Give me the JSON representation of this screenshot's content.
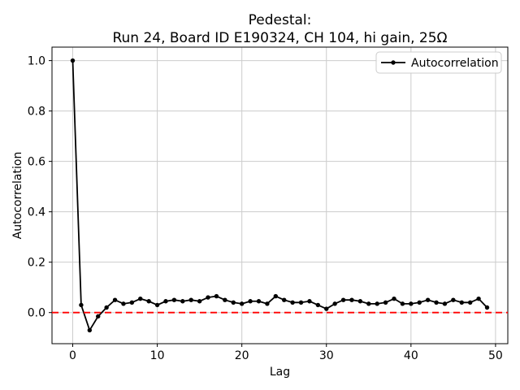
{
  "figure": {
    "title_line1": "Pedestal:",
    "title_line2": "Run 24, Board ID E190324, CH 104, hi gain, 25Ω",
    "background": "#ffffff"
  },
  "colors": {
    "series": "#000000",
    "reference_line": "#ff0000",
    "grid": "#cccccc",
    "spine": "#000000",
    "legend_border": "#cccccc",
    "legend_background": "#ffffff"
  },
  "chart_data": {
    "type": "line",
    "title": "Pedestal:\nRun 24, Board ID E190324, CH 104, hi gain, 25Ω",
    "xlabel": "Lag",
    "ylabel": "Autocorrelation",
    "xlim": [
      -2.45,
      51.45
    ],
    "ylim": [
      -0.1235,
      1.0535
    ],
    "xticks": [
      0,
      10,
      20,
      30,
      40,
      50
    ],
    "yticks": [
      0.0,
      0.2,
      0.4,
      0.6,
      0.8,
      1.0
    ],
    "grid": true,
    "legend": {
      "position": "upper right",
      "entries": [
        {
          "label": "Autocorrelation",
          "color": "#000000",
          "marker": "circle",
          "linestyle": "solid"
        }
      ]
    },
    "reference_line": {
      "y": 0.0,
      "color": "#ff0000",
      "style": "dashed"
    },
    "series": [
      {
        "name": "Autocorrelation",
        "color": "#000000",
        "marker": "circle",
        "x": [
          0,
          1,
          2,
          3,
          4,
          5,
          6,
          7,
          8,
          9,
          10,
          11,
          12,
          13,
          14,
          15,
          16,
          17,
          18,
          19,
          20,
          21,
          22,
          23,
          24,
          25,
          26,
          27,
          28,
          29,
          30,
          31,
          32,
          33,
          34,
          35,
          36,
          37,
          38,
          39,
          40,
          41,
          42,
          43,
          44,
          45,
          46,
          47,
          48,
          49
        ],
        "y": [
          1.0,
          0.03,
          -0.07,
          -0.015,
          0.02,
          0.05,
          0.035,
          0.04,
          0.055,
          0.045,
          0.03,
          0.045,
          0.05,
          0.045,
          0.05,
          0.045,
          0.06,
          0.065,
          0.05,
          0.04,
          0.035,
          0.045,
          0.045,
          0.035,
          0.065,
          0.05,
          0.04,
          0.04,
          0.045,
          0.03,
          0.015,
          0.035,
          0.05,
          0.05,
          0.045,
          0.035,
          0.035,
          0.04,
          0.055,
          0.035,
          0.035,
          0.04,
          0.05,
          0.04,
          0.035,
          0.05,
          0.04,
          0.04,
          0.055,
          0.02
        ]
      }
    ]
  }
}
